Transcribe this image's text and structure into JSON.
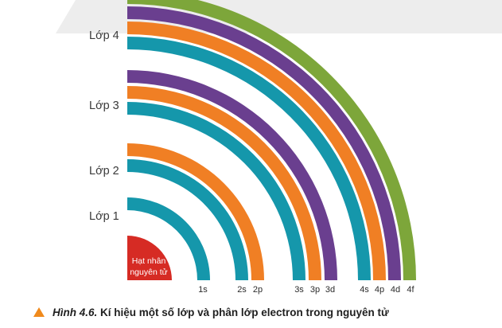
{
  "figure": {
    "layers": [
      {
        "label": "Lớp 1",
        "subshells": [
          "1s"
        ]
      },
      {
        "label": "Lớp 2",
        "subshells": [
          "2s",
          "2p"
        ]
      },
      {
        "label": "Lớp 3",
        "subshells": [
          "3s",
          "3p",
          "3d"
        ]
      },
      {
        "label": "Lớp 4",
        "subshells": [
          "4s",
          "4p",
          "4d",
          "4f"
        ]
      }
    ],
    "nucleus": {
      "line1": "Hạt nhân",
      "line2": "nguyên tử"
    },
    "colors": {
      "s": "#1597ab",
      "p": "#f07f24",
      "d": "#6a3f8f",
      "f": "#7da63a",
      "nucleus": "#d62b24",
      "watermark": "#e8e8e8",
      "triangle": "#f08a1c"
    }
  },
  "caption": {
    "prefix": "Hình 4.6.",
    "text": " Kí hiệu một số lớp và phân lớp electron trong nguyên tử"
  }
}
